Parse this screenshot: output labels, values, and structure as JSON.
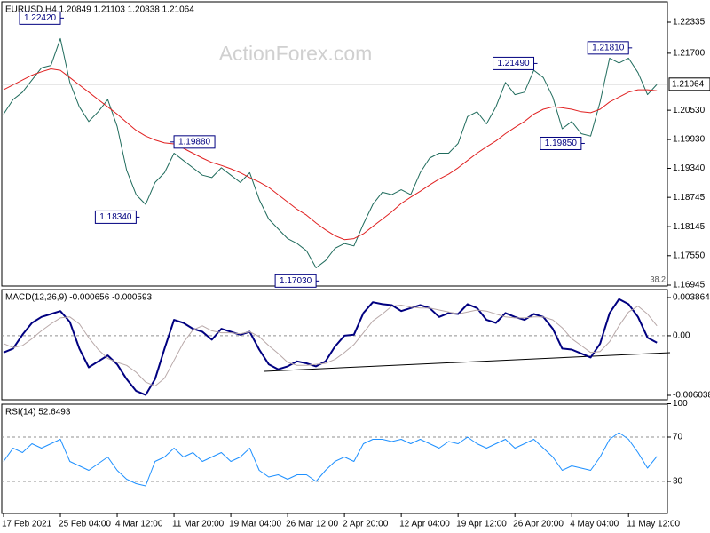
{
  "watermark": "ActionForex.com",
  "chart_data": [
    {
      "type": "line",
      "title": "EURUSD,H4  1.20849 1.21103 1.20838 1.21064",
      "ylim": [
        1.16927,
        1.22754
      ],
      "yticks": [
        1.22335,
        {
          "value": 1.217,
          "label": "1.21700"
        },
        {
          "value": 1.2053,
          "label": "1.20530"
        },
        {
          "value": 1.1993,
          "label": "1.19930"
        },
        {
          "value": 1.1934,
          "label": "1.19340"
        },
        1.18745,
        1.18145,
        {
          "value": 1.1755,
          "label": "1.17550"
        },
        1.16945
      ],
      "last_price": 1.21064,
      "fib_label": 38.2,
      "series": [
        {
          "color": "#1f6b5c",
          "values": [
            1.2045,
            1.2075,
            1.209,
            1.2115,
            1.214,
            1.2145,
            1.22,
            1.211,
            1.206,
            1.203,
            1.205,
            1.2075,
            1.202,
            1.193,
            1.188,
            1.186,
            1.1905,
            1.1925,
            1.1965,
            1.195,
            1.1935,
            1.192,
            1.1915,
            1.1935,
            1.192,
            1.1905,
            1.1925,
            1.187,
            1.183,
            1.181,
            1.179,
            1.178,
            1.1765,
            1.173,
            1.1745,
            1.177,
            1.178,
            1.1775,
            1.182,
            1.186,
            1.1885,
            1.188,
            1.189,
            1.188,
            1.1925,
            1.1955,
            1.1965,
            1.1965,
            1.1985,
            1.204,
            1.205,
            1.2025,
            1.206,
            1.211,
            1.2085,
            1.209,
            1.2135,
            1.212,
            1.208,
            1.2015,
            1.203,
            1.2005,
            1.2,
            1.207,
            1.216,
            1.215,
            1.216,
            1.213,
            1.2085,
            1.2106
          ]
        },
        {
          "color": "#e02020",
          "values": [
            1.2095,
            1.2105,
            1.2115,
            1.2125,
            1.2132,
            1.2138,
            1.2135,
            1.212,
            1.2105,
            1.209,
            1.2075,
            1.206,
            1.2045,
            1.2028,
            1.2012,
            1.2,
            1.1992,
            1.1986,
            1.1984,
            1.1975,
            1.1965,
            1.1955,
            1.1946,
            1.194,
            1.1933,
            1.1925,
            1.1915,
            1.1906,
            1.1895,
            1.188,
            1.1865,
            1.185,
            1.1838,
            1.1822,
            1.1808,
            1.1796,
            1.1788,
            1.179,
            1.18,
            1.1815,
            1.183,
            1.1845,
            1.1862,
            1.1875,
            1.1887,
            1.19,
            1.1912,
            1.1922,
            1.1935,
            1.195,
            1.1965,
            1.1978,
            1.199,
            1.2005,
            1.2018,
            1.203,
            1.2045,
            1.2055,
            1.206,
            1.2058,
            1.2055,
            1.205,
            1.2048,
            1.2055,
            1.207,
            1.208,
            1.209,
            1.2095,
            1.2095,
            1.2093
          ]
        }
      ],
      "annotations": [
        {
          "index": 6,
          "value": 1.2242,
          "label": "1.22420"
        },
        {
          "index": 14,
          "value": 1.1834,
          "label": "1.18340"
        },
        {
          "index": 18,
          "value": 1.1988,
          "label": "1.19880"
        },
        {
          "index": 33,
          "value": 1.1703,
          "label": "1.17030"
        },
        {
          "index": 56,
          "value": 1.2149,
          "label": "1.21490"
        },
        {
          "index": 66,
          "value": 1.2181,
          "label": "1.21810"
        },
        {
          "index": 61,
          "value": 1.1985,
          "label": "1.19850"
        }
      ]
    },
    {
      "type": "line",
      "title": "MACD(12,26,9) -0.000656 -0.000593",
      "ylim": [
        -0.006488,
        0.004674
      ],
      "yticks": [
        0.003864,
        {
          "value": 0,
          "label": "0.00"
        },
        -0.006038
      ],
      "levels": [
        0
      ],
      "series": [
        {
          "color": "#000080",
          "width": 2,
          "values": [
            -0.0017,
            -0.0013,
            0.0001,
            0.0013,
            0.0019,
            0.0022,
            0.0025,
            0.0014,
            -0.0013,
            -0.0032,
            -0.0026,
            -0.002,
            -0.0029,
            -0.0044,
            -0.0056,
            -0.006,
            -0.0044,
            -0.0013,
            0.0016,
            0.0013,
            0.0007,
            0.0004,
            -0.0004,
            0.0007,
            0.0004,
            0.0001,
            0.0004,
            -0.0014,
            -0.0029,
            -0.0034,
            -0.0031,
            -0.0026,
            -0.0028,
            -0.0031,
            -0.0026,
            -0.0011,
            0.0,
            0.0001,
            0.0023,
            0.0034,
            0.0032,
            0.0031,
            0.0025,
            0.0028,
            0.0031,
            0.0028,
            0.0019,
            0.0023,
            0.0022,
            0.0032,
            0.0028,
            0.0016,
            0.0013,
            0.0023,
            0.0019,
            0.0016,
            0.0022,
            0.0019,
            0.0007,
            -0.0013,
            -0.0014,
            -0.0018,
            -0.0022,
            -0.0008,
            0.0023,
            0.0037,
            0.0032,
            0.0019,
            -0.0002,
            -0.0007
          ]
        },
        {
          "color": "#b8a8a8",
          "width": 1,
          "values": [
            -0.0008,
            -0.0012,
            -0.001,
            -0.0003,
            0.0005,
            0.0012,
            0.0018,
            0.0019,
            0.0012,
            -0.0002,
            -0.0014,
            -0.0023,
            -0.0027,
            -0.003,
            -0.0037,
            -0.0047,
            -0.0051,
            -0.0043,
            -0.0025,
            -0.0007,
            0.0006,
            0.001,
            0.0005,
            0.0003,
            0.0003,
            0.0002,
            0.0004,
            -0.0001,
            -0.001,
            -0.0018,
            -0.0027,
            -0.003,
            -0.003,
            -0.0029,
            -0.0028,
            -0.0024,
            -0.0017,
            -0.0009,
            0.0003,
            0.0015,
            0.0022,
            0.003,
            0.0031,
            0.0029,
            0.0028,
            0.0028,
            0.0026,
            0.0024,
            0.0022,
            0.0024,
            0.0026,
            0.0025,
            0.0022,
            0.0019,
            0.0018,
            0.0018,
            0.0019,
            0.0019,
            0.0016,
            0.0008,
            -0.0003,
            -0.001,
            -0.0017,
            -0.0016,
            -0.0006,
            0.001,
            0.0024,
            0.003,
            0.0022,
            0.001
          ]
        }
      ]
    },
    {
      "type": "line",
      "title": "RSI(14) 52.6493",
      "ylim": [
        0,
        100
      ],
      "yticks": [
        100,
        70,
        30
      ],
      "levels": [
        70,
        30
      ],
      "categories": [
        "17 Feb 2021",
        null,
        null,
        null,
        null,
        null,
        "25 Feb 04:00",
        null,
        null,
        null,
        null,
        null,
        "4 Mar 12:00",
        null,
        null,
        null,
        null,
        null,
        "11 Mar 20:00",
        null,
        null,
        null,
        null,
        null,
        "19 Mar 04:00",
        null,
        null,
        null,
        null,
        null,
        "26 Mar 12:00",
        null,
        null,
        null,
        null,
        null,
        "2 Apr 20:00",
        null,
        null,
        null,
        null,
        null,
        "12 Apr 04:00",
        null,
        null,
        null,
        null,
        null,
        "19 Apr 12:00",
        null,
        null,
        null,
        null,
        null,
        "26 Apr 20:00",
        null,
        null,
        null,
        null,
        null,
        "4 May 04:00",
        null,
        null,
        null,
        null,
        null,
        "11 May 12:00",
        null,
        null,
        null
      ],
      "series": [
        {
          "color": "#1e90ff",
          "width": 1,
          "values": [
            48,
            60,
            56,
            64,
            60,
            64,
            68,
            48,
            44,
            40,
            46,
            52,
            40,
            32,
            28,
            26,
            48,
            52,
            60,
            52,
            56,
            48,
            52,
            56,
            48,
            52,
            60,
            40,
            34,
            36,
            32,
            36,
            36,
            30,
            40,
            48,
            52,
            48,
            64,
            68,
            68,
            66,
            68,
            64,
            68,
            64,
            60,
            66,
            64,
            70,
            64,
            60,
            64,
            68,
            60,
            64,
            68,
            60,
            52,
            40,
            44,
            42,
            40,
            52,
            68,
            74,
            68,
            56,
            42,
            52.6
          ]
        }
      ]
    }
  ]
}
